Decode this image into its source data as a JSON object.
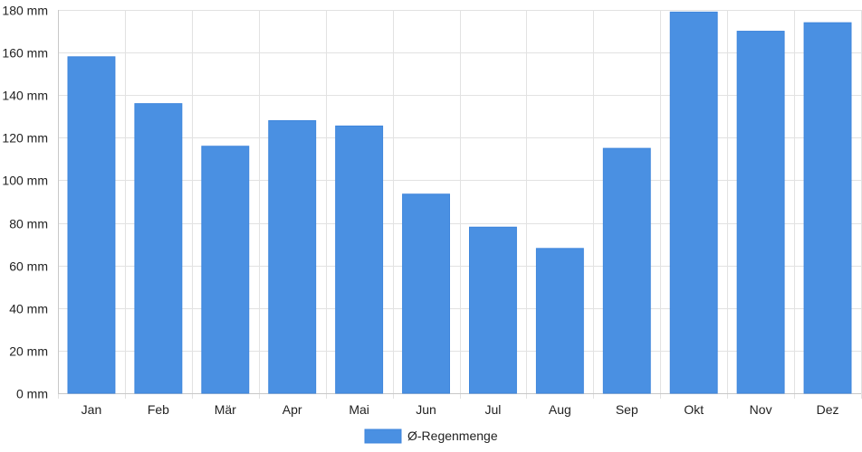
{
  "chart_data": {
    "type": "bar",
    "categories": [
      "Jan",
      "Feb",
      "Mär",
      "Apr",
      "Mai",
      "Jun",
      "Jul",
      "Aug",
      "Sep",
      "Okt",
      "Nov",
      "Dez"
    ],
    "series": [
      {
        "name": "Ø-Regenmenge",
        "values": [
          158,
          136,
          116,
          128,
          125.5,
          93.5,
          78,
          68,
          115,
          179,
          170,
          174
        ],
        "color": "#4a90e2"
      }
    ],
    "ylim": [
      0,
      180
    ],
    "yticks": [
      0,
      20,
      40,
      60,
      80,
      100,
      120,
      140,
      160,
      180
    ],
    "y_unit_suffix": " mm",
    "grid": true,
    "legend_position": "bottom",
    "title": "",
    "xlabel": "",
    "ylabel": ""
  },
  "colors": {
    "grid": "#e2e2e2",
    "axis": "#c8c8c8",
    "text": "#222222"
  }
}
